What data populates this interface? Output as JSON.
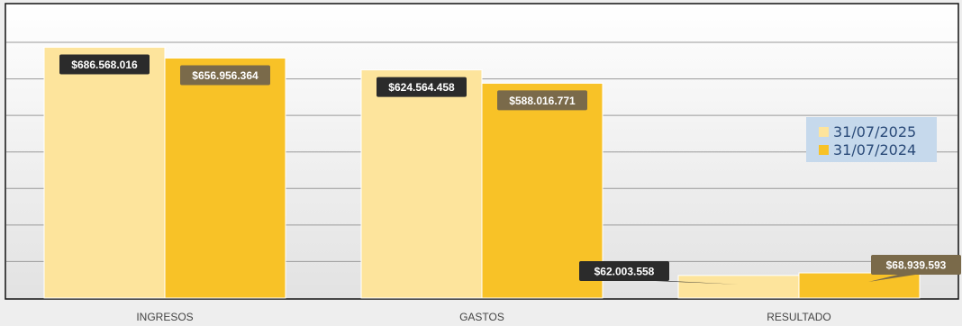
{
  "chart_data": {
    "type": "bar",
    "title": "",
    "xlabel": "",
    "ylabel": "",
    "categories": [
      "INGRESOS",
      "GASTOS",
      "RESULTADO"
    ],
    "series": [
      {
        "name": "31/07/2025",
        "values": [
          686568016,
          624564458,
          62003558
        ],
        "labels": [
          "$686.568.016",
          "$624.564.458",
          "$62.003.558"
        ],
        "color": "#fde49c",
        "label_bg": "#2b2b2b"
      },
      {
        "name": "31/07/2024",
        "values": [
          656956364,
          588016771,
          68939593
        ],
        "labels": [
          "$656.956.364",
          "$588.016.771",
          "$68.939.593"
        ],
        "color": "#f8c227",
        "label_bg": "#7a6a4a"
      }
    ],
    "ylim": [
      0,
      700000000
    ],
    "grid": true,
    "legend_position": "right"
  }
}
